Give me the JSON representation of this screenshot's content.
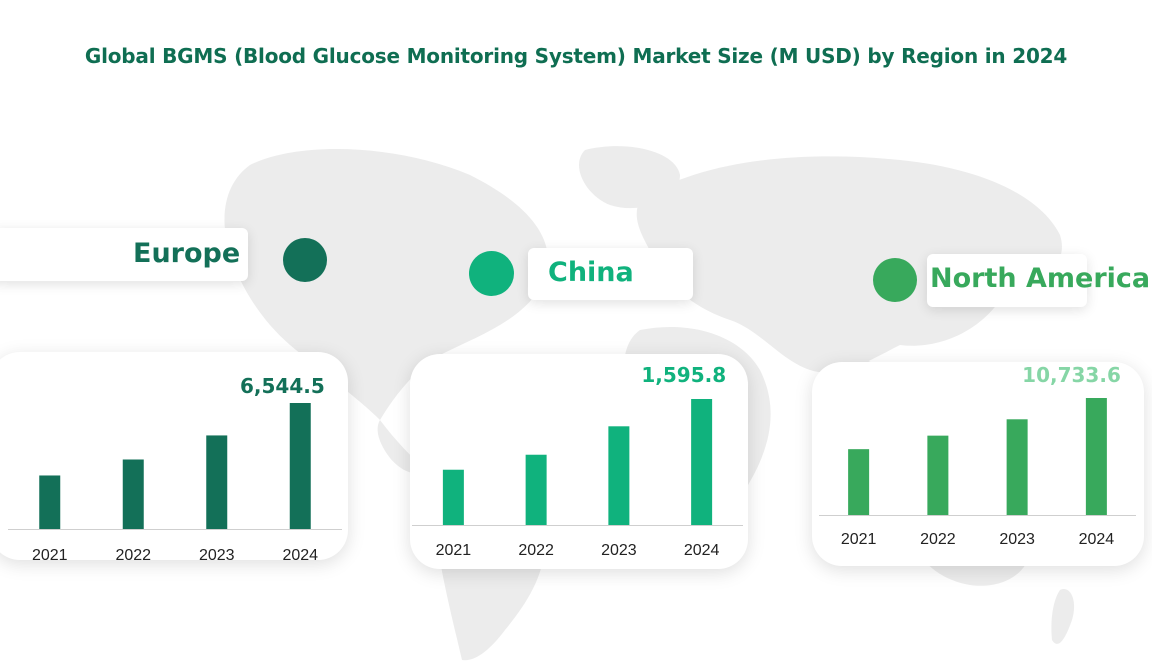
{
  "title": "Global BGMS (Blood Glucose Monitoring System) Market Size (M USD) by Region in 2024",
  "colors": {
    "title": "#0f6e52",
    "map": "#ececec"
  },
  "chart_data": [
    {
      "type": "bar",
      "region": "Europe",
      "color": "#137058",
      "categories": [
        "2021",
        "2022",
        "2023",
        "2024"
      ],
      "values": [
        2780,
        3610,
        4860,
        6544.5
      ],
      "value_label": "6,544.5",
      "ylim": [
        0,
        6544.5
      ]
    },
    {
      "type": "bar",
      "region": "China",
      "color": "#10b27d",
      "categories": [
        "2021",
        "2022",
        "2023",
        "2024"
      ],
      "values": [
        700,
        890,
        1250,
        1595.8
      ],
      "value_label": "1,595.8",
      "ylim": [
        0,
        1595.8
      ]
    },
    {
      "type": "bar",
      "region": "North America",
      "color": "#38a95c",
      "label_color": "#86d6a6",
      "categories": [
        "2021",
        "2022",
        "2023",
        "2024"
      ],
      "values": [
        6040,
        7280,
        8780,
        10733.6
      ],
      "value_label": "10,733.6",
      "ylim": [
        0,
        10733.6
      ]
    }
  ]
}
